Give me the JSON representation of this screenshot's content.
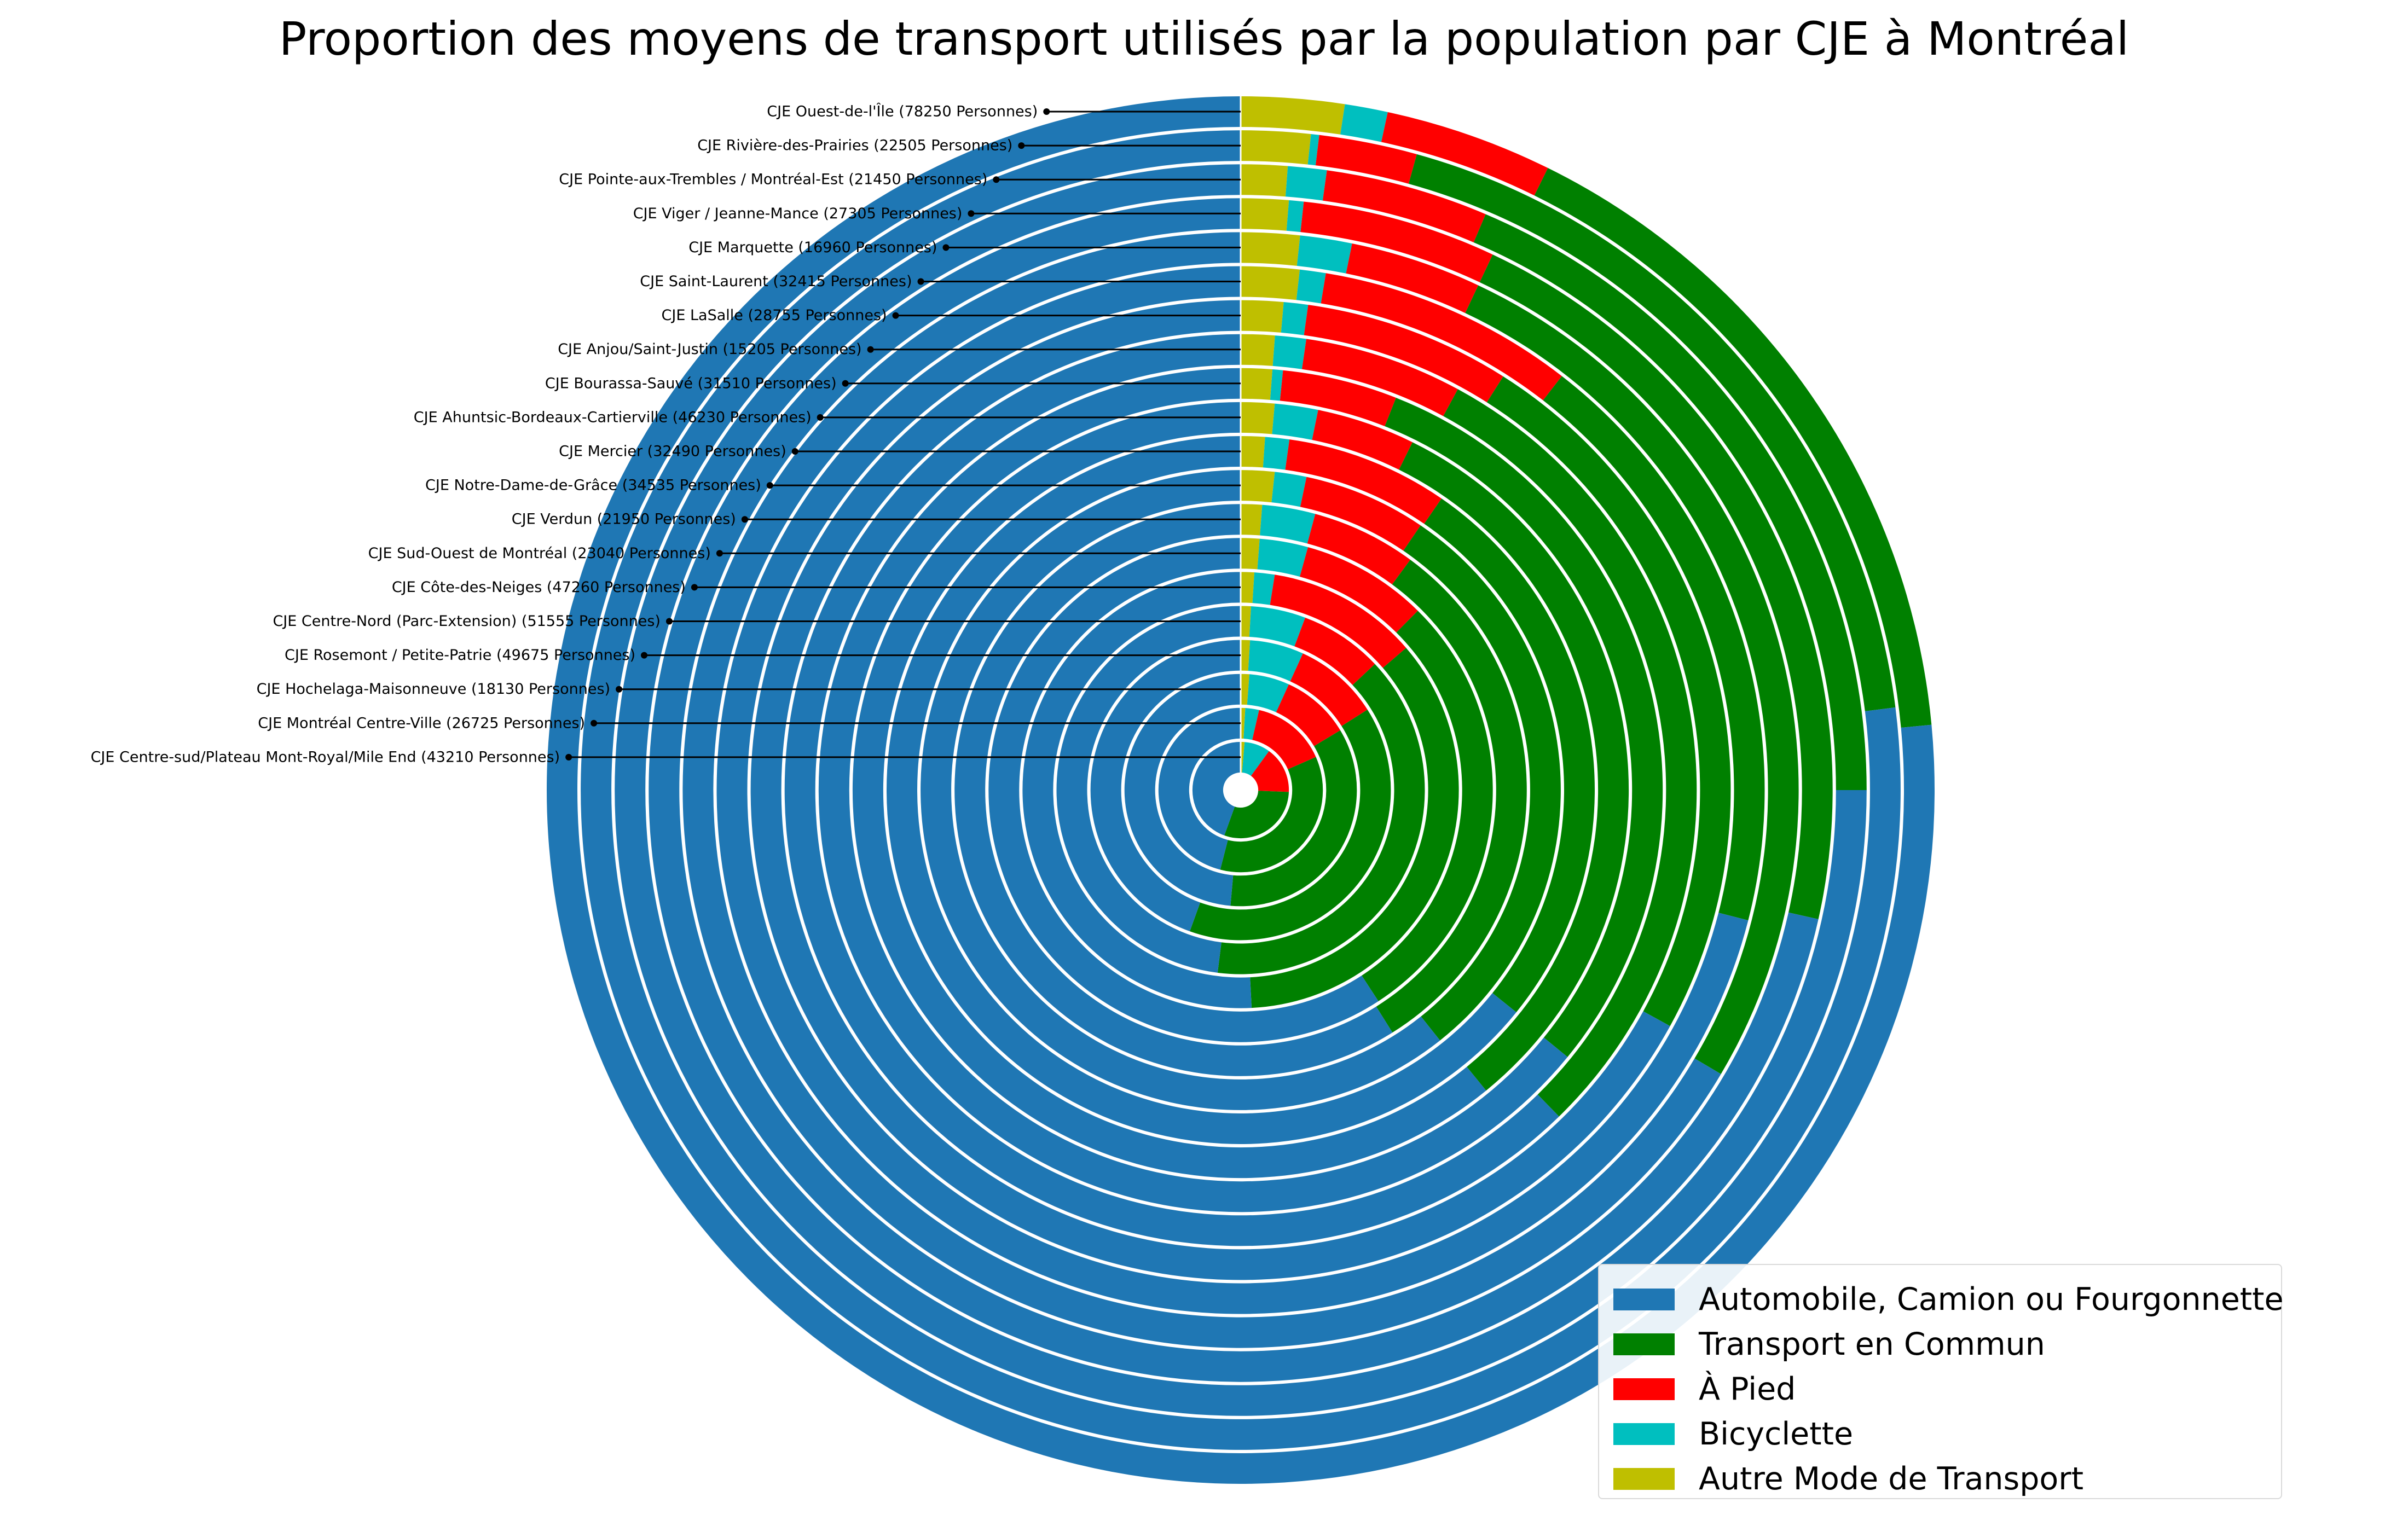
{
  "title": "Proportion des moyens de transport utilisés par la population par CJE à Montréal",
  "chart_data": {
    "type": "radial-bar",
    "direction": "clockwise",
    "start": "12 o'clock",
    "grid": false,
    "legend_position": "bottom-right",
    "series": [
      {
        "name": "Automobile, Camion ou Fourgonnette",
        "color": "#1f77b4"
      },
      {
        "name": "Transport en Commun",
        "color": "#008000"
      },
      {
        "name": "À Pied",
        "color": "#ff0000"
      },
      {
        "name": "Bicyclette",
        "color": "#00bfbf"
      },
      {
        "name": "Autre Mode de Transport",
        "color": "#bfbf00"
      }
    ],
    "segment_order": [
      "Autre Mode de Transport",
      "Bicyclette",
      "À Pied",
      "Transport en Commun",
      "Automobile, Camion ou Fourgonnette"
    ],
    "rings": [
      {
        "label": "CJE Ouest-de-l'Île (78250 Personnes)",
        "autre": 0.024,
        "bicyclette": 0.01,
        "a_pied": 0.039,
        "transport_en_commun": 0.162,
        "automobile": 0.765
      },
      {
        "label": "CJE Rivière-des-Prairies (22505 Personnes)",
        "autre": 0.017,
        "bicyclette": 0.002,
        "a_pied": 0.024,
        "transport_en_commun": 0.187,
        "automobile": 0.77
      },
      {
        "label": "CJE Pointe-aux-Trembles / Montréal-Est (21450 Personnes)",
        "autre": 0.012,
        "bicyclette": 0.01,
        "a_pied": 0.042,
        "transport_en_commun": 0.186,
        "automobile": 0.75
      },
      {
        "label": "CJE Viger / Jeanne-Mance (27305 Personnes)",
        "autre": 0.013,
        "bicyclette": 0.004,
        "a_pied": 0.053,
        "transport_en_commun": 0.215,
        "automobile": 0.715
      },
      {
        "label": "CJE Marquette (16960 Personnes)",
        "autre": 0.017,
        "bicyclette": 0.015,
        "a_pied": 0.038,
        "transport_en_commun": 0.265,
        "automobile": 0.665
      },
      {
        "label": "CJE Saint-Laurent (32415 Personnes)",
        "autre": 0.018,
        "bicyclette": 0.008,
        "a_pied": 0.079,
        "transport_en_commun": 0.185,
        "automobile": 0.71
      },
      {
        "label": "CJE LaSalle (28755 Personnes)",
        "autre": 0.014,
        "bicyclette": 0.008,
        "a_pied": 0.068,
        "transport_en_commun": 0.24,
        "automobile": 0.67
      },
      {
        "label": "CJE Anjou/Saint-Justin (15205 Personnes)",
        "autre": 0.012,
        "bicyclette": 0.011,
        "a_pied": 0.056,
        "transport_en_commun": 0.298,
        "automobile": 0.623
      },
      {
        "label": "CJE Bourassa-Sauvé (31510 Personnes)",
        "autre": 0.012,
        "bicyclette": 0.004,
        "a_pied": 0.044,
        "transport_en_commun": 0.299,
        "automobile": 0.641
      },
      {
        "label": "CJE Ahuntsic-Bordeaux-Cartierville (46230 Personnes)",
        "autre": 0.014,
        "bicyclette": 0.018,
        "a_pied": 0.041,
        "transport_en_commun": 0.318,
        "automobile": 0.609
      },
      {
        "label": "CJE Mercier (32490 Personnes)",
        "autre": 0.011,
        "bicyclette": 0.011,
        "a_pied": 0.074,
        "transport_en_commun": 0.262,
        "automobile": 0.642
      },
      {
        "label": "CJE Notre-Dame-de-Grâce (34535 Personnes)",
        "autre": 0.017,
        "bicyclette": 0.016,
        "a_pied": 0.062,
        "transport_en_commun": 0.298,
        "automobile": 0.607
      },
      {
        "label": "CJE Verdun (21950 Personnes)",
        "autre": 0.012,
        "bicyclette": 0.03,
        "a_pied": 0.059,
        "transport_en_commun": 0.31,
        "automobile": 0.589
      },
      {
        "label": "CJE Sud-Ouest de Montréal (23040 Personnes)",
        "autre": 0.012,
        "bicyclette": 0.031,
        "a_pied": 0.081,
        "transport_en_commun": 0.284,
        "automobile": 0.592
      },
      {
        "label": "CJE Côte-des-Neiges (47260 Personnes)",
        "autre": 0.01,
        "bicyclette": 0.015,
        "a_pied": 0.112,
        "transport_en_commun": 0.355,
        "automobile": 0.508
      },
      {
        "label": "CJE Centre-Nord (Parc-Extension) (51555 Personnes)",
        "autre": 0.009,
        "bicyclette": 0.048,
        "a_pied": 0.073,
        "transport_en_commun": 0.39,
        "automobile": 0.48
      },
      {
        "label": "CJE Rosemont / Petite-Patrie (49675 Personnes)",
        "autre": 0.01,
        "bicyclette": 0.058,
        "a_pied": 0.092,
        "transport_en_commun": 0.395,
        "automobile": 0.445
      },
      {
        "label": "CJE Hochelaga-Maisonneuve (18130 Personnes)",
        "autre": 0.012,
        "bicyclette": 0.056,
        "a_pied": 0.096,
        "transport_en_commun": 0.35,
        "automobile": 0.486
      },
      {
        "label": "CJE Montréal Centre-Ville (26725 Personnes)",
        "autre": 0.009,
        "bicyclette": 0.027,
        "a_pied": 0.148,
        "transport_en_commun": 0.356,
        "automobile": 0.46
      },
      {
        "label": "CJE Centre-sud/Plateau Mont-Royal/Mile End (43210 Personnes)",
        "autre": 0.013,
        "bicyclette": 0.087,
        "a_pied": 0.156,
        "transport_en_commun": 0.299,
        "automobile": 0.445
      }
    ]
  }
}
